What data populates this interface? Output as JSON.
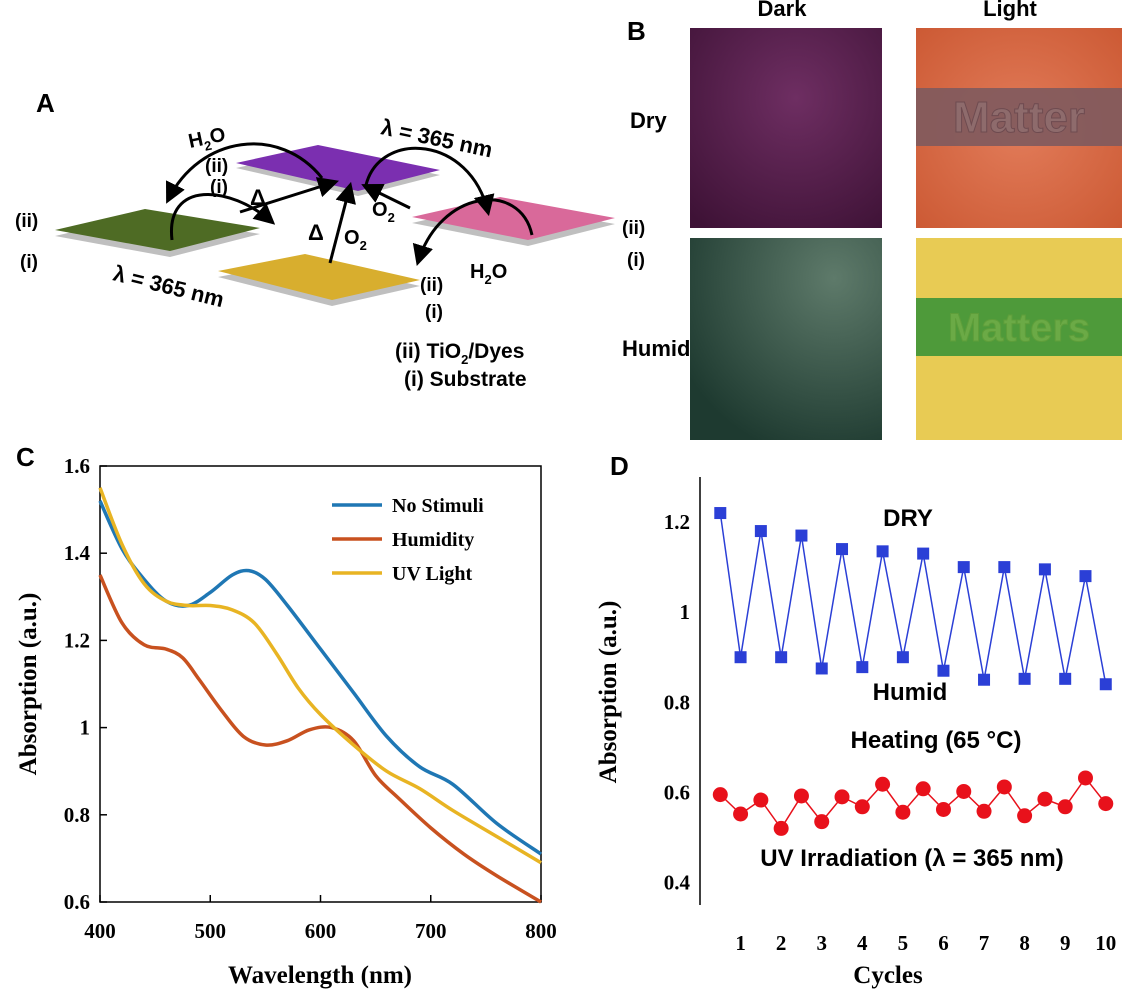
{
  "panels": {
    "A": "A",
    "B": "B",
    "C": "C",
    "D": "D"
  },
  "panel_a": {
    "h2o_top": "H",
    "h2o_top_sub": "2",
    "h2o_top_tail": "O",
    "h2o_bottom": "H",
    "h2o_bottom_sub": "2",
    "h2o_bottom_tail": "O",
    "uv_top": "λ = 365 nm",
    "uv_bottom": "λ = 365 nm",
    "o2_right": "O",
    "o2_right_sub": "2",
    "o2_center": "O",
    "o2_center_sub": "2",
    "delta": "Δ",
    "layer_ii": "(ii)",
    "layer_i": "(i)",
    "legend_ii_pre": "(ii) TiO",
    "legend_ii_sub": "2",
    "legend_ii_post": "/Dyes",
    "legend_i": "(i) Substrate",
    "colors": {
      "purple": "#7B2FB0",
      "green": "#4E6B24",
      "yellow": "#D8AE2E",
      "pink": "#D9699A"
    }
  },
  "panel_b": {
    "col_dark": "Dark",
    "col_light": "Light",
    "row_dry": "Dry",
    "row_humid": "Humid",
    "text_dry_light": "Matter",
    "text_humid_light": "Matters"
  },
  "chart_data": [
    {
      "type": "line",
      "xlabel": "Wavelength (nm)",
      "ylabel": "Absorption (a.u.)",
      "xlim": [
        400,
        800
      ],
      "ylim": [
        0.6,
        1.6
      ],
      "xticks": [
        400,
        500,
        600,
        700,
        800
      ],
      "yticks": [
        0.6,
        0.8,
        1,
        1.2,
        1.4,
        1.6
      ],
      "ytick_labels": [
        "0.6",
        "0.8",
        "1",
        "1.2",
        "1.4",
        "1.6"
      ],
      "legend_position": "top-right",
      "series": [
        {
          "name": "No Stimuli",
          "color": "#1F77B4",
          "x": [
            400,
            420,
            440,
            460,
            480,
            500,
            520,
            535,
            550,
            570,
            600,
            630,
            660,
            690,
            720,
            760,
            800
          ],
          "y": [
            1.52,
            1.41,
            1.34,
            1.29,
            1.28,
            1.31,
            1.35,
            1.36,
            1.34,
            1.28,
            1.18,
            1.08,
            0.98,
            0.91,
            0.87,
            0.78,
            0.71
          ]
        },
        {
          "name": "Humidity",
          "color": "#C8511F",
          "x": [
            400,
            420,
            440,
            460,
            475,
            490,
            510,
            530,
            550,
            570,
            590,
            610,
            630,
            650,
            670,
            700,
            730,
            760,
            800
          ],
          "y": [
            1.35,
            1.24,
            1.19,
            1.18,
            1.16,
            1.11,
            1.04,
            0.98,
            0.96,
            0.97,
            0.995,
            1.0,
            0.97,
            0.89,
            0.84,
            0.77,
            0.71,
            0.66,
            0.6
          ]
        },
        {
          "name": "UV Light",
          "color": "#E8B423",
          "x": [
            400,
            420,
            440,
            460,
            480,
            500,
            520,
            540,
            560,
            580,
            600,
            630,
            660,
            690,
            720,
            760,
            800
          ],
          "y": [
            1.55,
            1.42,
            1.33,
            1.29,
            1.28,
            1.28,
            1.27,
            1.24,
            1.17,
            1.09,
            1.03,
            0.96,
            0.9,
            0.86,
            0.81,
            0.75,
            0.69
          ]
        }
      ]
    },
    {
      "type": "scatter",
      "xlabel": "Cycles",
      "ylabel": "Absorption (a.u.)",
      "xlim": [
        0,
        10.4
      ],
      "ylim": [
        0.35,
        1.3
      ],
      "xticks": [
        1,
        2,
        3,
        4,
        5,
        6,
        7,
        8,
        9,
        10
      ],
      "yticks": [
        0.4,
        0.6,
        0.8,
        1,
        1.2
      ],
      "ytick_labels": [
        "0.4",
        "0.6",
        "0.8",
        "1",
        "1.2"
      ],
      "series": [
        {
          "name": "DRY / Humid",
          "color": "#2B3FD6",
          "marker": "square",
          "x": [
            0.5,
            1,
            1.5,
            2,
            2.5,
            3,
            3.5,
            4,
            4.5,
            5,
            5.5,
            6,
            6.5,
            7,
            7.5,
            8,
            8.5,
            9,
            9.5,
            10
          ],
          "y": [
            1.22,
            0.9,
            1.18,
            0.9,
            1.17,
            0.875,
            1.14,
            0.878,
            1.135,
            0.9,
            1.13,
            0.87,
            1.1,
            0.85,
            1.1,
            0.852,
            1.095,
            0.852,
            1.08,
            0.84
          ]
        },
        {
          "name": "Heating / UV Irradiation",
          "color": "#E8111B",
          "marker": "circle",
          "x": [
            0.5,
            1,
            1.5,
            2,
            2.5,
            3,
            3.5,
            4,
            4.5,
            5,
            5.5,
            6,
            6.5,
            7,
            7.5,
            8,
            8.5,
            9,
            9.5,
            10
          ],
          "y": [
            0.595,
            0.552,
            0.583,
            0.52,
            0.592,
            0.535,
            0.59,
            0.568,
            0.618,
            0.556,
            0.608,
            0.562,
            0.602,
            0.558,
            0.612,
            0.548,
            0.585,
            0.568,
            0.632,
            0.575
          ]
        }
      ],
      "annotations": {
        "dry": "DRY",
        "humid": "Humid",
        "heating": "Heating (65 °C)",
        "uv": "UV Irradiation (λ = 365 nm)",
        "dry_color": "#1C2B6E",
        "red_color": "#E8111B"
      }
    }
  ]
}
